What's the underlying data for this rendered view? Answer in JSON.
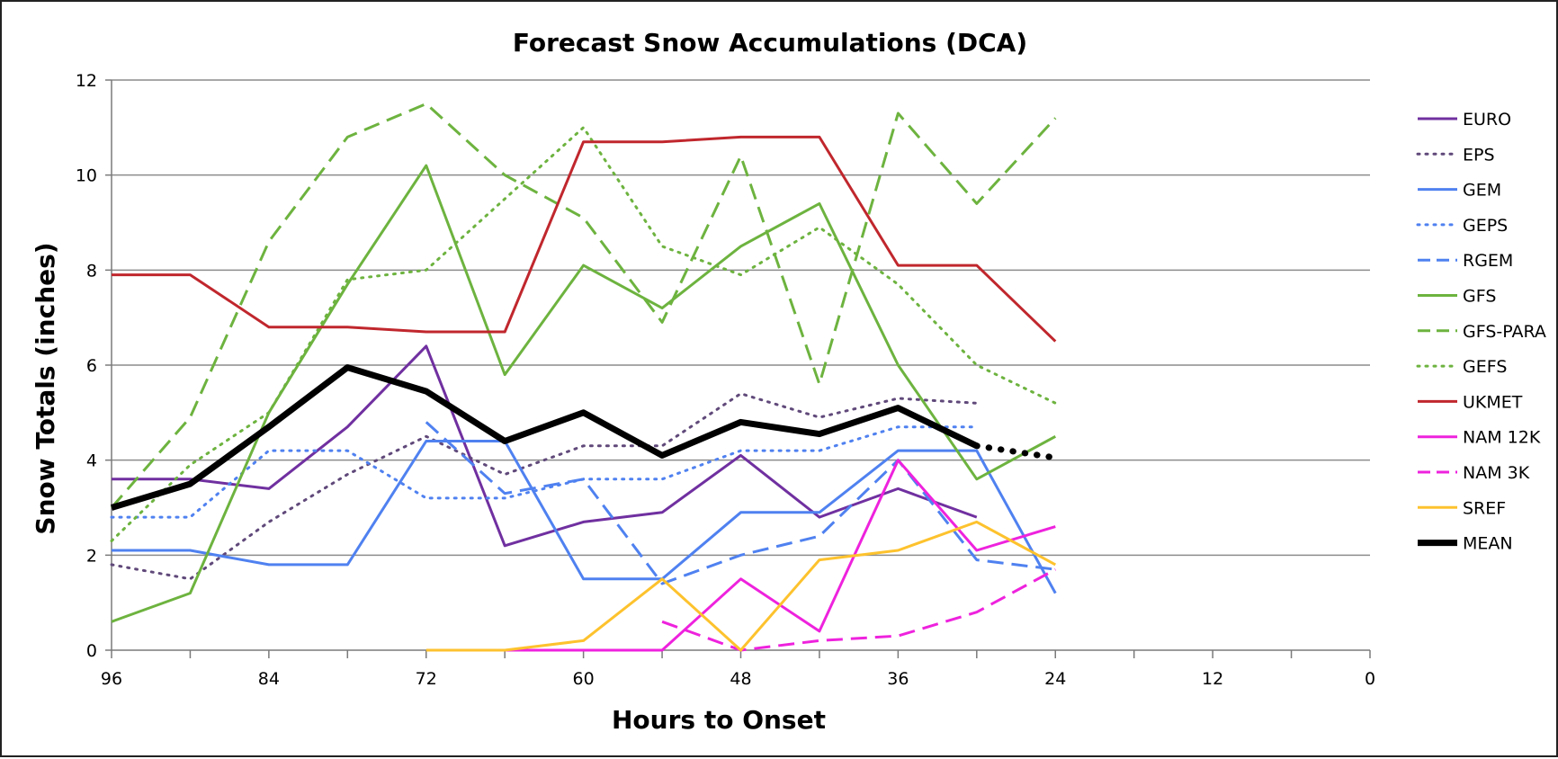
{
  "chart_data": {
    "type": "line",
    "title": "Forecast Snow Accumulations (DCA)",
    "xlabel": "Hours to Onset",
    "ylabel": "Snow Totals (inches)",
    "xlim": [
      96,
      0
    ],
    "ylim": [
      0,
      12
    ],
    "x_ticks": [
      96,
      84,
      72,
      60,
      48,
      36,
      24,
      12,
      0
    ],
    "y_ticks": [
      0,
      2,
      4,
      6,
      8,
      10,
      12
    ],
    "x_minor_ticks": [
      90,
      78,
      66,
      54,
      42,
      30,
      18,
      6
    ],
    "grid": "horizontal",
    "legend_position": "right",
    "series": [
      {
        "name": "EURO",
        "color": "#7030A0",
        "dash": "solid",
        "width": 3,
        "x": [
          96,
          90,
          84,
          78,
          72,
          66,
          60,
          54,
          48,
          42,
          36,
          30
        ],
        "y": [
          3.6,
          3.6,
          3.4,
          4.7,
          6.4,
          2.2,
          2.7,
          2.9,
          4.1,
          2.8,
          3.4,
          2.8
        ]
      },
      {
        "name": "EPS",
        "color": "#60497A",
        "dash": "dotted",
        "width": 3,
        "x": [
          96,
          90,
          84,
          78,
          72,
          66,
          60,
          54,
          48,
          42,
          36,
          30
        ],
        "y": [
          1.8,
          1.5,
          2.7,
          3.7,
          4.5,
          3.7,
          4.3,
          4.3,
          5.4,
          4.9,
          5.3,
          5.2
        ]
      },
      {
        "name": "GEM",
        "color": "#4F81F0",
        "dash": "solid",
        "width": 3,
        "x": [
          96,
          90,
          84,
          78,
          72,
          66,
          60,
          54,
          48,
          42,
          36,
          30,
          24
        ],
        "y": [
          2.1,
          2.1,
          1.8,
          1.8,
          4.4,
          4.4,
          1.5,
          1.5,
          2.9,
          2.9,
          4.2,
          4.2,
          1.2
        ]
      },
      {
        "name": "GEPS",
        "color": "#4F81F0",
        "dash": "dotted",
        "width": 3,
        "x": [
          96,
          90,
          84,
          78,
          72,
          66,
          60,
          54,
          48,
          42,
          36,
          30
        ],
        "y": [
          2.8,
          2.8,
          4.2,
          4.2,
          3.2,
          3.2,
          3.6,
          3.6,
          4.2,
          4.2,
          4.7,
          4.7
        ]
      },
      {
        "name": "RGEM",
        "color": "#4F81F0",
        "dash": "dashed",
        "width": 3,
        "x": [
          72,
          66,
          60,
          54,
          48,
          42,
          36,
          30,
          24
        ],
        "y": [
          4.8,
          3.3,
          3.6,
          1.4,
          2.0,
          2.4,
          4.0,
          1.9,
          1.7
        ]
      },
      {
        "name": "GFS",
        "color": "#6DB33F",
        "dash": "solid",
        "width": 3,
        "x": [
          96,
          90,
          84,
          78,
          72,
          66,
          60,
          54,
          48,
          42,
          36,
          30,
          24
        ],
        "y": [
          0.6,
          1.2,
          5.0,
          7.7,
          10.2,
          5.8,
          8.1,
          7.2,
          8.5,
          9.4,
          6.0,
          3.6,
          4.5
        ]
      },
      {
        "name": "GFS-PARA",
        "color": "#6DB33F",
        "dash": "dashed",
        "width": 3,
        "x": [
          96,
          90,
          84,
          78,
          72,
          66,
          60,
          54,
          48,
          42,
          36,
          30,
          24
        ],
        "y": [
          3.0,
          4.9,
          8.6,
          10.8,
          11.5,
          10.0,
          9.1,
          6.9,
          10.4,
          5.6,
          11.3,
          9.4,
          11.2
        ]
      },
      {
        "name": "GEFS",
        "color": "#6DB33F",
        "dash": "dotted",
        "width": 3,
        "x": [
          96,
          90,
          84,
          78,
          72,
          66,
          60,
          54,
          48,
          42,
          36,
          30,
          24
        ],
        "y": [
          2.3,
          3.9,
          5.0,
          7.8,
          8.0,
          9.5,
          11.0,
          8.5,
          7.9,
          8.9,
          7.7,
          6.0,
          5.2
        ]
      },
      {
        "name": "UKMET",
        "color": "#C0272D",
        "dash": "solid",
        "width": 3,
        "x": [
          96,
          90,
          84,
          78,
          72,
          66,
          60,
          54,
          48,
          42,
          36,
          30,
          24
        ],
        "y": [
          7.9,
          7.9,
          6.8,
          6.8,
          6.7,
          6.7,
          10.7,
          10.7,
          10.8,
          10.8,
          8.1,
          8.1,
          6.5
        ]
      },
      {
        "name": "NAM 12K",
        "color": "#EE22DD",
        "dash": "solid",
        "width": 3,
        "x": [
          66,
          60,
          54,
          48,
          42,
          36,
          30,
          24
        ],
        "y": [
          0,
          0,
          0,
          1.5,
          0.4,
          4.0,
          2.1,
          2.6
        ]
      },
      {
        "name": "NAM 3K",
        "color": "#EE22DD",
        "dash": "dashed",
        "width": 3,
        "x": [
          54,
          48,
          42,
          36,
          30,
          24
        ],
        "y": [
          0.6,
          0,
          0.2,
          0.3,
          0.8,
          1.7
        ]
      },
      {
        "name": "SREF",
        "color": "#FDC22D",
        "dash": "solid",
        "width": 3,
        "x": [
          72,
          66,
          60,
          54,
          48,
          42,
          36,
          30,
          24
        ],
        "y": [
          0,
          0,
          0.2,
          1.5,
          0,
          1.9,
          2.1,
          2.7,
          1.8
        ]
      },
      {
        "name": "MEAN",
        "color": "#000000",
        "dash": "solid",
        "width": 7,
        "x": [
          96,
          90,
          84,
          78,
          72,
          66,
          60,
          54,
          48,
          42,
          36,
          30
        ],
        "y": [
          3.0,
          3.5,
          4.7,
          5.95,
          5.45,
          4.4,
          5.0,
          4.1,
          4.8,
          4.55,
          5.1,
          4.3
        ]
      }
    ],
    "mean_extension": {
      "color": "#000000",
      "dash": "dotted",
      "x": [
        30,
        24
      ],
      "y": [
        4.3,
        4.05
      ]
    }
  }
}
